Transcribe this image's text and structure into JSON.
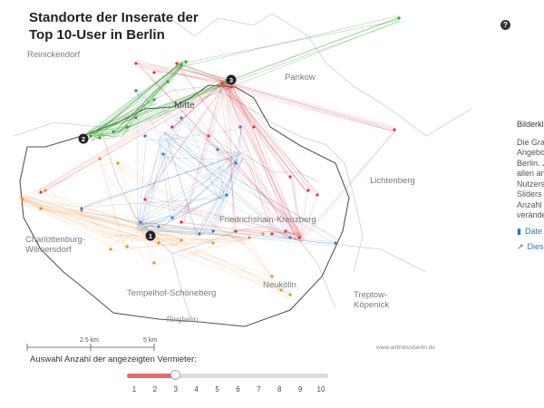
{
  "title_line1": "Standorte der Inserate der",
  "title_line2": "Top 10-User in Berlin",
  "districts": {
    "reinickendorf": "Reinickendorf",
    "pankow": "Pankow",
    "mitte": "Mitte",
    "lichtenberg": "Lichtenberg",
    "charlottenburg1": "Charlottenburg-",
    "charlottenburg2": "Wilmersdorf",
    "friedrichshain": "Friedrichshain-Kreuzberg",
    "tempelhof": "Tempelhof-Schöneberg",
    "neukoelln": "Neukölln",
    "treptow1": "Treptow-",
    "treptow2": "Köpenick",
    "ringbahn": "Ringbahn"
  },
  "markers": [
    "1",
    "2",
    "3"
  ],
  "side_panel": {
    "heading": "Bilderkl",
    "lines": [
      "Die Gra",
      "Angebo",
      "Berlin. J",
      "allen an",
      "Nutzers",
      "Sliders i",
      "Anzahl",
      "verände"
    ],
    "links": [
      {
        "icon": "file-icon",
        "label": "Date"
      },
      {
        "icon": "external-link-icon",
        "label": "Dies"
      }
    ]
  },
  "help_label": "?",
  "scale": {
    "label_a": "2.5 km",
    "label_b": "5 km"
  },
  "credit": "www.airbnbvsberlin.de",
  "slider": {
    "title": "Auswahl Anzahl der angezeigten Vermieter:",
    "ticks": [
      "1",
      "2",
      "3",
      "4",
      "5",
      "6",
      "7",
      "8",
      "9",
      "10"
    ],
    "value": 3,
    "min": 1,
    "max": 10
  },
  "colors": {
    "red": "#e0323e",
    "green": "#3aa035",
    "blue": "#3d7cc4",
    "orange": "#f08a2e",
    "slider_fill": "#e66a72"
  }
}
